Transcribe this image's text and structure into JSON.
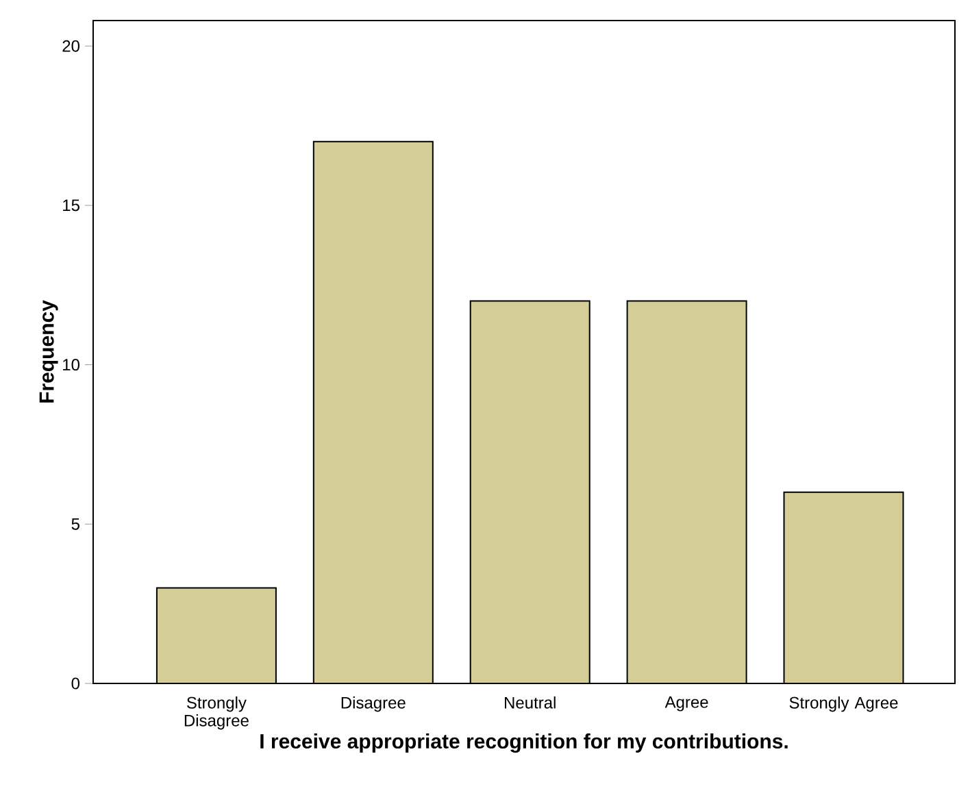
{
  "chart_data": {
    "type": "bar",
    "xlabel": "I receive appropriate recognition for my contributions.",
    "ylabel": "Frequency",
    "categories": [
      "Strongly Disagree",
      "Disagree",
      "Neutral",
      "Agree",
      "Strongly Agree"
    ],
    "values": [
      3,
      17,
      12,
      12,
      6
    ],
    "color": "#d4cd98",
    "ylim": [
      0,
      20.8
    ],
    "yticks": [
      0,
      5,
      10,
      15,
      20
    ]
  }
}
